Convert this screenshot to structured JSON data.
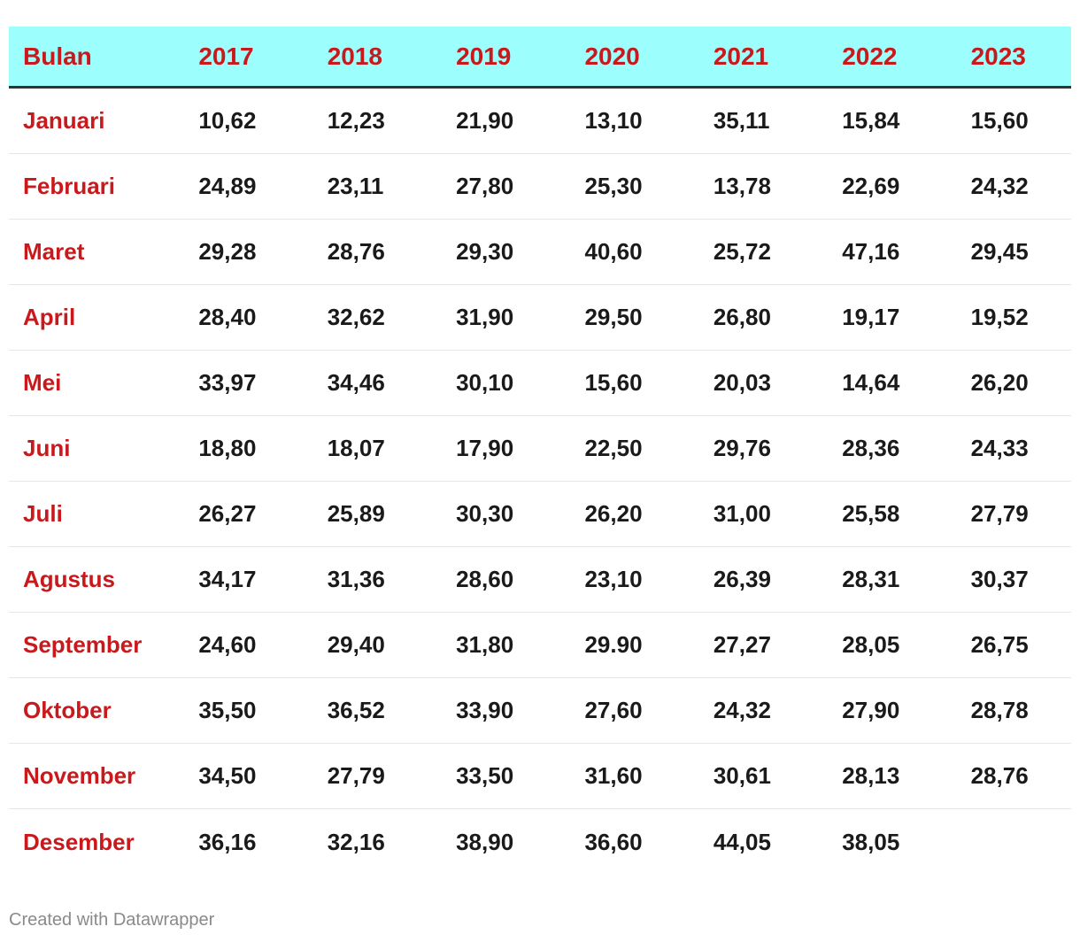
{
  "table": {
    "columns": [
      "Bulan",
      "2017",
      "2018",
      "2019",
      "2020",
      "2021",
      "2022",
      "2023"
    ],
    "rows": [
      {
        "month": "Januari",
        "values": [
          "10,62",
          "12,23",
          "21,90",
          "13,10",
          "35,11",
          "15,84",
          "15,60"
        ]
      },
      {
        "month": "Februari",
        "values": [
          "24,89",
          "23,11",
          "27,80",
          "25,30",
          "13,78",
          "22,69",
          "24,32"
        ]
      },
      {
        "month": "Maret",
        "values": [
          "29,28",
          "28,76",
          "29,30",
          "40,60",
          "25,72",
          "47,16",
          "29,45"
        ]
      },
      {
        "month": "April",
        "values": [
          "28,40",
          "32,62",
          "31,90",
          "29,50",
          "26,80",
          "19,17",
          "19,52"
        ]
      },
      {
        "month": "Mei",
        "values": [
          "33,97",
          "34,46",
          "30,10",
          "15,60",
          "20,03",
          "14,64",
          "26,20"
        ]
      },
      {
        "month": "Juni",
        "values": [
          "18,80",
          "18,07",
          "17,90",
          "22,50",
          "29,76",
          "28,36",
          "24,33"
        ]
      },
      {
        "month": "Juli",
        "values": [
          "26,27",
          "25,89",
          "30,30",
          "26,20",
          "31,00",
          "25,58",
          "27,79"
        ]
      },
      {
        "month": "Agustus",
        "values": [
          "34,17",
          "31,36",
          "28,60",
          "23,10",
          "26,39",
          "28,31",
          "30,37"
        ]
      },
      {
        "month": "September",
        "values": [
          "24,60",
          "29,40",
          "31,80",
          "29.90",
          "27,27",
          "28,05",
          "26,75"
        ]
      },
      {
        "month": "Oktober",
        "values": [
          "35,50",
          "36,52",
          "33,90",
          "27,60",
          "24,32",
          "27,90",
          "28,78"
        ]
      },
      {
        "month": "November",
        "values": [
          "34,50",
          "27,79",
          "33,50",
          "31,60",
          "30,61",
          "28,13",
          "28,76"
        ]
      },
      {
        "month": "Desember",
        "values": [
          "36,16",
          "32,16",
          "38,90",
          "36,60",
          "44,05",
          "38,05",
          ""
        ]
      }
    ]
  },
  "footer": {
    "credit": "Created with Datawrapper"
  },
  "colors": {
    "header_bg": "#9cfffe",
    "label_red": "#c8191c",
    "text": "#1a1a1a"
  }
}
